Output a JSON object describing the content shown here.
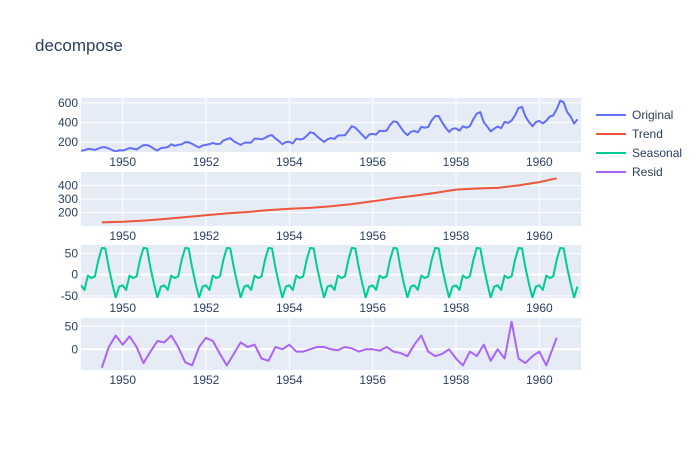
{
  "chart_data": {
    "type": "line",
    "title": "decompose",
    "legend_placement": "top-right",
    "x_ticks": [
      "1950",
      "1952",
      "1954",
      "1956",
      "1958",
      "1960"
    ],
    "xlim": [
      "1949-01",
      "1961-01"
    ],
    "grid": true,
    "colors": {
      "Original": "#636efa",
      "Trend": "#EF553B",
      "Seasonal": "#00cc96",
      "Resid": "#ab63fa",
      "plot_bg": "#e5ecf6",
      "grid": "#ffffff",
      "text": "#2a3f5f"
    },
    "panels": [
      {
        "series": "Original",
        "ylim": [
          100,
          650
        ],
        "y_ticks": [
          200,
          400,
          600
        ],
        "x": [
          "1949-01",
          "1949-02",
          "1949-03",
          "1949-04",
          "1949-05",
          "1949-06",
          "1949-07",
          "1949-08",
          "1949-09",
          "1949-10",
          "1949-11",
          "1949-12",
          "1950-01",
          "1950-02",
          "1950-03",
          "1950-04",
          "1950-05",
          "1950-06",
          "1950-07",
          "1950-08",
          "1950-09",
          "1950-10",
          "1950-11",
          "1950-12",
          "1951-01",
          "1951-02",
          "1951-03",
          "1951-04",
          "1951-05",
          "1951-06",
          "1951-07",
          "1951-08",
          "1951-09",
          "1951-10",
          "1951-11",
          "1951-12",
          "1952-01",
          "1952-02",
          "1952-03",
          "1952-04",
          "1952-05",
          "1952-06",
          "1952-07",
          "1952-08",
          "1952-09",
          "1952-10",
          "1952-11",
          "1952-12",
          "1953-01",
          "1953-02",
          "1953-03",
          "1953-04",
          "1953-05",
          "1953-06",
          "1953-07",
          "1953-08",
          "1953-09",
          "1953-10",
          "1953-11",
          "1953-12",
          "1954-01",
          "1954-02",
          "1954-03",
          "1954-04",
          "1954-05",
          "1954-06",
          "1954-07",
          "1954-08",
          "1954-09",
          "1954-10",
          "1954-11",
          "1954-12",
          "1955-01",
          "1955-02",
          "1955-03",
          "1955-04",
          "1955-05",
          "1955-06",
          "1955-07",
          "1955-08",
          "1955-09",
          "1955-10",
          "1955-11",
          "1955-12",
          "1956-01",
          "1956-02",
          "1956-03",
          "1956-04",
          "1956-05",
          "1956-06",
          "1956-07",
          "1956-08",
          "1956-09",
          "1956-10",
          "1956-11",
          "1956-12",
          "1957-01",
          "1957-02",
          "1957-03",
          "1957-04",
          "1957-05",
          "1957-06",
          "1957-07",
          "1957-08",
          "1957-09",
          "1957-10",
          "1957-11",
          "1957-12",
          "1958-01",
          "1958-02",
          "1958-03",
          "1958-04",
          "1958-05",
          "1958-06",
          "1958-07",
          "1958-08",
          "1958-09",
          "1958-10",
          "1958-11",
          "1958-12",
          "1959-01",
          "1959-02",
          "1959-03",
          "1959-04",
          "1959-05",
          "1959-06",
          "1959-07",
          "1959-08",
          "1959-09",
          "1959-10",
          "1959-11",
          "1959-12",
          "1960-01",
          "1960-02",
          "1960-03",
          "1960-04",
          "1960-05",
          "1960-06",
          "1960-07",
          "1960-08",
          "1960-09",
          "1960-10",
          "1960-11",
          "1960-12"
        ],
        "y": [
          112,
          118,
          132,
          129,
          121,
          135,
          148,
          148,
          136,
          119,
          104,
          118,
          115,
          126,
          141,
          135,
          125,
          149,
          170,
          170,
          158,
          133,
          114,
          140,
          145,
          150,
          178,
          163,
          172,
          178,
          199,
          199,
          184,
          162,
          146,
          166,
          171,
          180,
          193,
          181,
          183,
          218,
          230,
          242,
          209,
          191,
          172,
          194,
          196,
          196,
          236,
          235,
          229,
          243,
          264,
          272,
          237,
          211,
          180,
          201,
          204,
          188,
          235,
          227,
          234,
          264,
          302,
          293,
          259,
          229,
          203,
          229,
          242,
          233,
          267,
          269,
          270,
          315,
          364,
          347,
          312,
          274,
          237,
          278,
          284,
          277,
          317,
          313,
          318,
          374,
          413,
          405,
          355,
          306,
          271,
          306,
          315,
          301,
          356,
          348,
          355,
          422,
          465,
          467,
          404,
          347,
          305,
          336,
          340,
          318,
          362,
          348,
          363,
          435,
          491,
          505,
          404,
          359,
          310,
          337,
          360,
          342,
          406,
          396,
          420,
          472,
          548,
          559,
          463,
          407,
          362,
          405,
          417,
          391,
          419,
          461,
          472,
          535,
          622,
          606,
          508,
          461,
          390,
          432
        ]
      },
      {
        "series": "Trend",
        "ylim": [
          100,
          500
        ],
        "y_ticks": [
          200,
          300,
          400
        ],
        "x": [
          "1949-07",
          "1950-01",
          "1950-07",
          "1951-01",
          "1951-07",
          "1952-01",
          "1952-07",
          "1953-01",
          "1953-07",
          "1954-01",
          "1954-07",
          "1955-01",
          "1955-07",
          "1956-01",
          "1956-07",
          "1957-01",
          "1957-07",
          "1958-01",
          "1958-07",
          "1959-01",
          "1959-07",
          "1960-01",
          "1960-06"
        ],
        "y": [
          127,
          131,
          140,
          152,
          166,
          179,
          193,
          204,
          218,
          228,
          234,
          246,
          262,
          283,
          305,
          324,
          345,
          370,
          378,
          382,
          401,
          425,
          453
        ]
      },
      {
        "series": "Seasonal",
        "ylim": [
          -55,
          70
        ],
        "y_ticks": [
          -50,
          0,
          50
        ],
        "x": [
          "1949-01",
          "1949-02",
          "1949-03",
          "1949-04",
          "1949-05",
          "1949-06",
          "1949-07",
          "1949-08",
          "1949-09",
          "1949-10",
          "1949-11",
          "1949-12",
          "1950-01",
          "1950-02",
          "1950-03",
          "1950-04",
          "1950-05",
          "1950-06",
          "1950-07",
          "1950-08",
          "1950-09",
          "1950-10",
          "1950-11",
          "1950-12",
          "1951-01",
          "1951-02",
          "1951-03",
          "1951-04",
          "1951-05",
          "1951-06",
          "1951-07",
          "1951-08",
          "1951-09",
          "1951-10",
          "1951-11",
          "1951-12",
          "1952-01",
          "1952-02",
          "1952-03",
          "1952-04",
          "1952-05",
          "1952-06",
          "1952-07",
          "1952-08",
          "1952-09",
          "1952-10",
          "1952-11",
          "1952-12",
          "1953-01",
          "1953-02",
          "1953-03",
          "1953-04",
          "1953-05",
          "1953-06",
          "1953-07",
          "1953-08",
          "1953-09",
          "1953-10",
          "1953-11",
          "1953-12",
          "1954-01",
          "1954-02",
          "1954-03",
          "1954-04",
          "1954-05",
          "1954-06",
          "1954-07",
          "1954-08",
          "1954-09",
          "1954-10",
          "1954-11",
          "1954-12",
          "1955-01",
          "1955-02",
          "1955-03",
          "1955-04",
          "1955-05",
          "1955-06",
          "1955-07",
          "1955-08",
          "1955-09",
          "1955-10",
          "1955-11",
          "1955-12",
          "1956-01",
          "1956-02",
          "1956-03",
          "1956-04",
          "1956-05",
          "1956-06",
          "1956-07",
          "1956-08",
          "1956-09",
          "1956-10",
          "1956-11",
          "1956-12",
          "1957-01",
          "1957-02",
          "1957-03",
          "1957-04",
          "1957-05",
          "1957-06",
          "1957-07",
          "1957-08",
          "1957-09",
          "1957-10",
          "1957-11",
          "1957-12",
          "1958-01",
          "1958-02",
          "1958-03",
          "1958-04",
          "1958-05",
          "1958-06",
          "1958-07",
          "1958-08",
          "1958-09",
          "1958-10",
          "1958-11",
          "1958-12",
          "1959-01",
          "1959-02",
          "1959-03",
          "1959-04",
          "1959-05",
          "1959-06",
          "1959-07",
          "1959-08",
          "1959-09",
          "1959-10",
          "1959-11",
          "1959-12",
          "1960-01",
          "1960-02",
          "1960-03",
          "1960-04",
          "1960-05",
          "1960-06",
          "1960-07",
          "1960-08",
          "1960-09",
          "1960-10",
          "1960-11",
          "1960-12"
        ],
        "y": [
          -25,
          -36,
          -2,
          -8,
          -4,
          35,
          63,
          62,
          17,
          -21,
          -54,
          -28,
          -25,
          -36,
          -2,
          -8,
          -4,
          35,
          63,
          62,
          17,
          -21,
          -54,
          -28,
          -25,
          -36,
          -2,
          -8,
          -4,
          35,
          63,
          62,
          17,
          -21,
          -54,
          -28,
          -25,
          -36,
          -2,
          -8,
          -4,
          35,
          63,
          62,
          17,
          -21,
          -54,
          -28,
          -25,
          -36,
          -2,
          -8,
          -4,
          35,
          63,
          62,
          17,
          -21,
          -54,
          -28,
          -25,
          -36,
          -2,
          -8,
          -4,
          35,
          63,
          62,
          17,
          -21,
          -54,
          -28,
          -25,
          -36,
          -2,
          -8,
          -4,
          35,
          63,
          62,
          17,
          -21,
          -54,
          -28,
          -25,
          -36,
          -2,
          -8,
          -4,
          35,
          63,
          62,
          17,
          -21,
          -54,
          -28,
          -25,
          -36,
          -2,
          -8,
          -4,
          35,
          63,
          62,
          17,
          -21,
          -54,
          -28,
          -25,
          -36,
          -2,
          -8,
          -4,
          35,
          63,
          62,
          17,
          -21,
          -54,
          -28,
          -25,
          -36,
          -2,
          -8,
          -4,
          35,
          63,
          62,
          17,
          -21,
          -54,
          -28,
          -25,
          -36,
          -2,
          -8,
          -4,
          35,
          63,
          62,
          17,
          -21,
          -54,
          -28
        ]
      },
      {
        "series": "Resid",
        "ylim": [
          -45,
          68
        ],
        "y_ticks": [
          0,
          50
        ],
        "x": [
          "1949-07",
          "1949-09",
          "1949-11",
          "1950-01",
          "1950-03",
          "1950-05",
          "1950-07",
          "1950-09",
          "1950-11",
          "1951-01",
          "1951-03",
          "1951-05",
          "1951-07",
          "1951-09",
          "1951-11",
          "1952-01",
          "1952-03",
          "1952-05",
          "1952-07",
          "1952-09",
          "1952-11",
          "1953-01",
          "1953-03",
          "1953-05",
          "1953-07",
          "1953-09",
          "1953-11",
          "1954-01",
          "1954-03",
          "1954-05",
          "1954-07",
          "1954-09",
          "1954-11",
          "1955-01",
          "1955-03",
          "1955-05",
          "1955-07",
          "1955-09",
          "1955-11",
          "1956-01",
          "1956-03",
          "1956-05",
          "1956-07",
          "1956-09",
          "1956-11",
          "1957-01",
          "1957-03",
          "1957-05",
          "1957-07",
          "1957-09",
          "1957-11",
          "1958-01",
          "1958-03",
          "1958-05",
          "1958-07",
          "1958-09",
          "1958-11",
          "1959-01",
          "1959-03",
          "1959-05",
          "1959-07",
          "1959-09",
          "1959-11",
          "1960-01",
          "1960-03",
          "1960-06"
        ],
        "y": [
          -40,
          5,
          30,
          10,
          28,
          5,
          -30,
          -5,
          18,
          15,
          30,
          5,
          -28,
          -35,
          5,
          25,
          18,
          -10,
          -35,
          -10,
          15,
          5,
          10,
          -20,
          -25,
          5,
          0,
          10,
          -5,
          -5,
          0,
          5,
          5,
          0,
          -2,
          5,
          2,
          -5,
          0,
          0,
          -3,
          5,
          -5,
          -8,
          -15,
          10,
          30,
          -5,
          -15,
          -10,
          0,
          -20,
          -35,
          -5,
          -15,
          10,
          -25,
          0,
          -20,
          60,
          -20,
          -30,
          -15,
          -5,
          -35,
          25
        ]
      }
    ]
  }
}
